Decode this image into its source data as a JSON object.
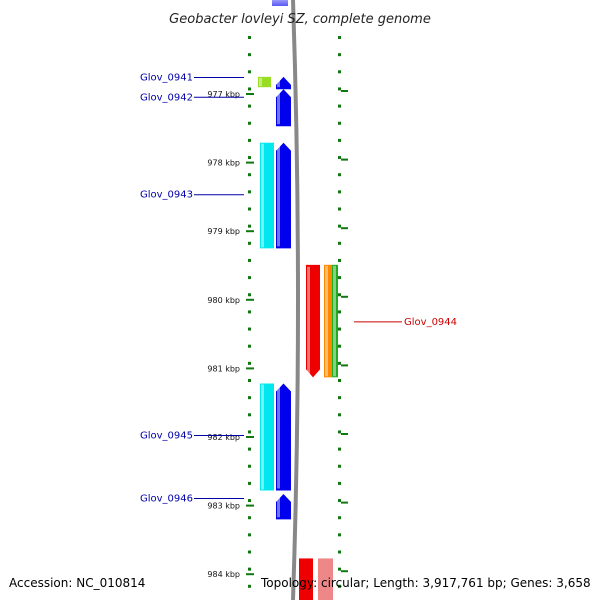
{
  "title": "Geobacter lovleyi SZ, complete genome",
  "footer": {
    "accession": "Accession: NC_010814",
    "summary": "Topology: circular; Length: 3,917,761 bp; Genes: 3,658"
  },
  "ticks": [
    {
      "kbp": 977,
      "label": "977 kbp"
    },
    {
      "kbp": 978,
      "label": "978 kbp"
    },
    {
      "kbp": 979,
      "label": "979 kbp"
    },
    {
      "kbp": 980,
      "label": "980 kbp"
    },
    {
      "kbp": 981,
      "label": "981 kbp"
    },
    {
      "kbp": 982,
      "label": "982 kbp"
    },
    {
      "kbp": 983,
      "label": "983 kbp"
    },
    {
      "kbp": 984,
      "label": "984 kbp"
    }
  ],
  "genes": [
    {
      "id": "Glov_0941",
      "label": "Glov_0941",
      "strand": "forward",
      "start_kbp": 976.75,
      "end_kbp": 976.93
    },
    {
      "id": "Glov_0942",
      "label": "Glov_0942",
      "strand": "forward",
      "start_kbp": 976.93,
      "end_kbp": 977.47
    },
    {
      "id": "Glov_0943",
      "label": "Glov_0943",
      "strand": "forward",
      "start_kbp": 977.71,
      "end_kbp": 979.25
    },
    {
      "id": "Glov_0944",
      "label": "Glov_0944",
      "strand": "reverse",
      "start_kbp": 979.49,
      "end_kbp": 981.13
    },
    {
      "id": "Glov_0945",
      "label": "Glov_0945",
      "strand": "forward",
      "start_kbp": 981.22,
      "end_kbp": 982.78
    },
    {
      "id": "Glov_0946",
      "label": "Glov_0946",
      "strand": "forward",
      "start_kbp": 982.83,
      "end_kbp": 983.2
    }
  ],
  "colors": {
    "forward_gene": "#0000ee",
    "forward_cds": "#00e8ee",
    "reverse_gene": "#ee0000",
    "reverse_cds": "#ff8800",
    "reverse_extra": "#22aa22",
    "short_cds": "#99dd22",
    "forward_label": "#0000aa",
    "reverse_label": "#cc0000",
    "backbone": "#888888",
    "tick": "#117711"
  }
}
